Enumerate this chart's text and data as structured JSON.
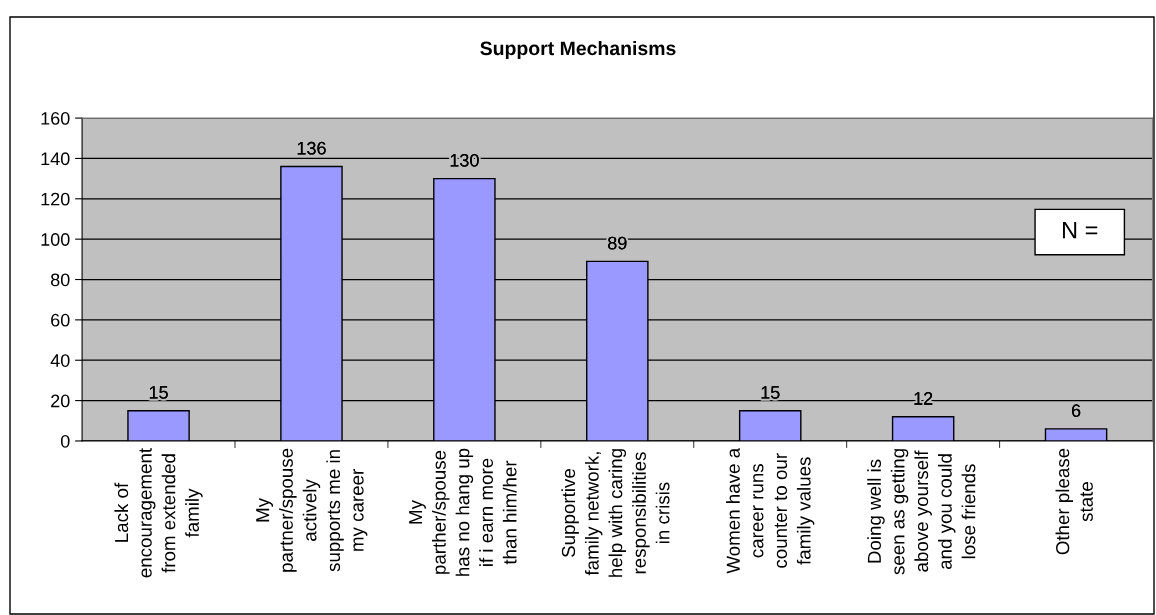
{
  "chart_data": {
    "type": "bar",
    "title": "Support Mechanisms",
    "categories": [
      "Lack of\nencouragement\nfrom extended\nfamily",
      "My\npartner/spouse\nactively\nsupports me in\nmy career",
      "My\nparther/spouse\nhas no hang up\nif i earn more\nthan him/her",
      "Supportive\nfamily network,\nhelp with caring\nresponsibilities\nin crisis",
      "Women have a\ncareer runs\ncounter to our\nfamily values",
      "Doing well is\nseen as getting\nabove yourself\nand you could\nlose friends",
      "Other please\nstate"
    ],
    "values": [
      15,
      136,
      130,
      89,
      15,
      12,
      6
    ],
    "color": "#9999ff",
    "ylim": [
      0,
      160
    ],
    "yticks": [
      0,
      20,
      40,
      60,
      80,
      100,
      120,
      140,
      160
    ],
    "grid": "y",
    "data_labels": true,
    "annotations": [
      "N ="
    ]
  }
}
